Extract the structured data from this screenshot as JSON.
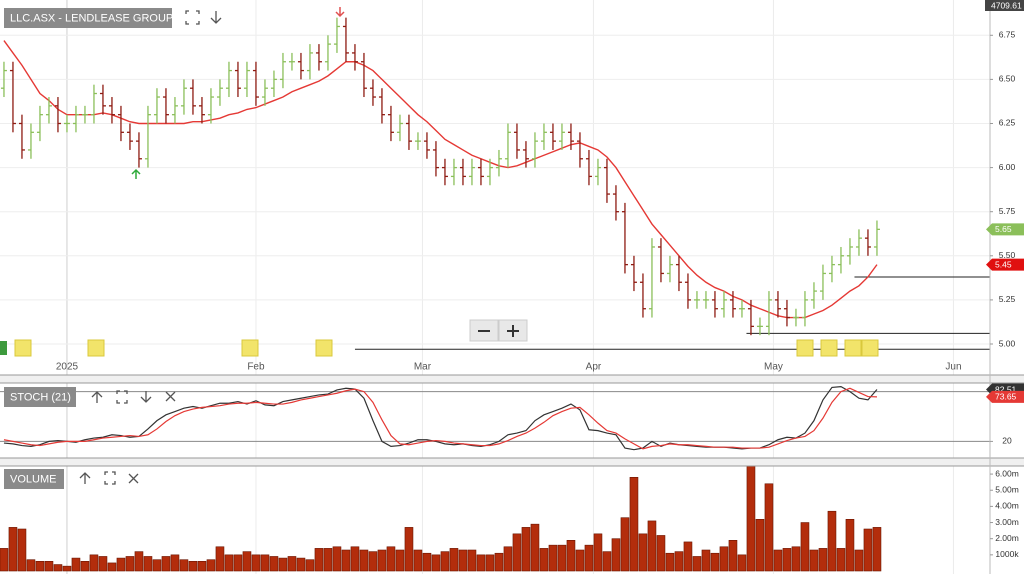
{
  "header_value": 4709.61,
  "chart_data": [
    {
      "type": "ohlc",
      "title": "LLC.ASX - LENDLEASE GROUP",
      "open": [
        6.45,
        6.55,
        6.25,
        6.1,
        6.2,
        6.3,
        6.35,
        6.25,
        6.25,
        6.3,
        6.3,
        6.42,
        6.35,
        6.3,
        6.2,
        6.15,
        6.05,
        6.3,
        6.4,
        6.3,
        6.35,
        6.45,
        6.35,
        6.3,
        6.4,
        6.45,
        6.55,
        6.45,
        6.55,
        6.4,
        6.45,
        6.5,
        6.6,
        6.6,
        6.55,
        6.65,
        6.6,
        6.7,
        6.8,
        6.65,
        6.6,
        6.45,
        6.4,
        6.3,
        6.2,
        6.25,
        6.15,
        6.15,
        6.1,
        6.0,
        5.95,
        6.0,
        5.95,
        6.0,
        5.95,
        6.0,
        6.05,
        6.2,
        6.1,
        6.05,
        6.15,
        6.2,
        6.15,
        6.2,
        6.15,
        6.05,
        5.95,
        6.0,
        5.85,
        5.75,
        5.45,
        5.35,
        5.2,
        5.55,
        5.4,
        5.45,
        5.35,
        5.25,
        5.25,
        5.25,
        5.2,
        5.25,
        5.2,
        5.2,
        5.1,
        5.1,
        5.25,
        5.2,
        5.15,
        5.15,
        5.25,
        5.3,
        5.4,
        5.45,
        5.5,
        5.55,
        5.6,
        5.55
      ],
      "high": [
        6.6,
        6.6,
        6.3,
        6.25,
        6.35,
        6.4,
        6.4,
        6.3,
        6.35,
        6.35,
        6.47,
        6.47,
        6.4,
        6.35,
        6.25,
        6.2,
        6.35,
        6.45,
        6.45,
        6.4,
        6.5,
        6.5,
        6.4,
        6.45,
        6.5,
        6.6,
        6.6,
        6.6,
        6.6,
        6.5,
        6.55,
        6.65,
        6.65,
        6.65,
        6.7,
        6.7,
        6.75,
        6.85,
        6.85,
        6.7,
        6.65,
        6.5,
        6.45,
        6.35,
        6.3,
        6.3,
        6.2,
        6.2,
        6.15,
        6.05,
        6.05,
        6.05,
        6.05,
        6.05,
        6.05,
        6.1,
        6.25,
        6.25,
        6.15,
        6.2,
        6.25,
        6.25,
        6.25,
        6.25,
        6.2,
        6.1,
        6.05,
        6.05,
        5.9,
        5.8,
        5.5,
        5.4,
        5.6,
        5.6,
        5.5,
        5.5,
        5.4,
        5.3,
        5.3,
        5.3,
        5.3,
        5.3,
        5.25,
        5.25,
        5.15,
        5.3,
        5.3,
        5.25,
        5.2,
        5.3,
        5.35,
        5.45,
        5.5,
        5.55,
        5.6,
        5.65,
        5.65,
        5.7
      ],
      "low": [
        6.4,
        6.2,
        6.05,
        6.05,
        6.15,
        6.25,
        6.2,
        6.2,
        6.2,
        6.25,
        6.25,
        6.3,
        6.25,
        6.15,
        6.1,
        6.0,
        6.0,
        6.25,
        6.25,
        6.25,
        6.3,
        6.3,
        6.25,
        6.25,
        6.35,
        6.4,
        6.4,
        6.4,
        6.35,
        6.35,
        6.4,
        6.45,
        6.55,
        6.5,
        6.5,
        6.55,
        6.55,
        6.65,
        6.6,
        6.55,
        6.4,
        6.35,
        6.25,
        6.15,
        6.15,
        6.1,
        6.1,
        6.05,
        5.95,
        5.9,
        5.9,
        5.9,
        5.9,
        5.9,
        5.9,
        5.95,
        6.0,
        6.05,
        6.0,
        6.0,
        6.1,
        6.1,
        6.1,
        6.1,
        6.0,
        5.9,
        5.9,
        5.8,
        5.7,
        5.4,
        5.3,
        5.15,
        5.15,
        5.35,
        5.35,
        5.3,
        5.2,
        5.2,
        5.2,
        5.15,
        5.15,
        5.15,
        5.15,
        5.05,
        5.05,
        5.05,
        5.15,
        5.1,
        5.1,
        5.1,
        5.2,
        5.25,
        5.35,
        5.4,
        5.45,
        5.5,
        5.5,
        5.5
      ],
      "close": [
        6.55,
        6.25,
        6.1,
        6.2,
        6.3,
        6.35,
        6.25,
        6.25,
        6.3,
        6.3,
        6.42,
        6.35,
        6.3,
        6.2,
        6.15,
        6.05,
        6.3,
        6.4,
        6.3,
        6.35,
        6.45,
        6.35,
        6.3,
        6.4,
        6.45,
        6.55,
        6.45,
        6.55,
        6.4,
        6.45,
        6.5,
        6.6,
        6.6,
        6.55,
        6.65,
        6.6,
        6.7,
        6.8,
        6.65,
        6.6,
        6.45,
        6.4,
        6.3,
        6.2,
        6.25,
        6.15,
        6.15,
        6.1,
        6.0,
        5.95,
        6.0,
        5.95,
        6.0,
        5.95,
        6.0,
        6.05,
        6.2,
        6.1,
        6.05,
        6.15,
        6.2,
        6.15,
        6.2,
        6.15,
        6.05,
        5.95,
        6.0,
        5.85,
        5.75,
        5.45,
        5.35,
        5.2,
        5.55,
        5.4,
        5.45,
        5.35,
        5.25,
        5.25,
        5.25,
        5.2,
        5.25,
        5.2,
        5.2,
        5.1,
        5.1,
        5.25,
        5.2,
        5.15,
        5.15,
        5.25,
        5.3,
        5.4,
        5.45,
        5.5,
        5.55,
        5.6,
        5.55,
        5.65
      ],
      "up_color": "#8bbf5a",
      "down_color": "#8e1b12",
      "close_badge_color": "#8bbf5a",
      "ma": {
        "color": "#e53935",
        "values": [
          6.72,
          6.65,
          6.58,
          6.5,
          6.42,
          6.38,
          6.33,
          6.3,
          6.3,
          6.3,
          6.3,
          6.31,
          6.3,
          6.28,
          6.26,
          6.25,
          6.25,
          6.25,
          6.25,
          6.25,
          6.25,
          6.26,
          6.26,
          6.27,
          6.28,
          6.3,
          6.31,
          6.33,
          6.34,
          6.36,
          6.38,
          6.4,
          6.43,
          6.45,
          6.47,
          6.49,
          6.52,
          6.56,
          6.6,
          6.6,
          6.58,
          6.55,
          6.5,
          6.45,
          6.4,
          6.35,
          6.3,
          6.26,
          6.21,
          6.16,
          6.13,
          6.1,
          6.07,
          6.05,
          6.03,
          6.01,
          6.0,
          6.01,
          6.03,
          6.05,
          6.07,
          6.09,
          6.11,
          6.13,
          6.14,
          6.12,
          6.1,
          6.06,
          6.0,
          5.92,
          5.84,
          5.76,
          5.68,
          5.62,
          5.56,
          5.5,
          5.44,
          5.39,
          5.35,
          5.32,
          5.3,
          5.27,
          5.25,
          5.22,
          5.2,
          5.18,
          5.16,
          5.15,
          5.15,
          5.15,
          5.17,
          5.19,
          5.22,
          5.26,
          5.3,
          5.33,
          5.38,
          5.45
        ]
      },
      "levels": [
        {
          "value": 5.38,
          "start": 94.5
        },
        {
          "value": 5.06,
          "start": 82.5
        },
        {
          "value": 4.97,
          "start": 39
        }
      ],
      "xlim": [
        -0.44,
        109.56
      ],
      "xticks": [
        {
          "value": 7,
          "label": "2025"
        },
        {
          "value": 28,
          "label": "Feb"
        },
        {
          "value": 46.5,
          "label": "Mar"
        },
        {
          "value": 65.5,
          "label": "Apr"
        },
        {
          "value": 85.5,
          "label": "May"
        },
        {
          "value": 105.5,
          "label": "Jun"
        }
      ],
      "ylim": [
        4.83,
        6.95
      ],
      "yticks": [
        {
          "value": 5,
          "label": "5.00"
        },
        5.25,
        {
          "value": 5.5,
          "label": "5.50"
        },
        5.75,
        {
          "value": 6,
          "label": "6.00"
        },
        6.25,
        {
          "value": 6.5,
          "label": "6.50"
        },
        6.75
      ],
      "grid": true
    },
    {
      "type": "line",
      "title": "STOCH (21)",
      "series": [
        {
          "color": "#333333",
          "values": [
            18,
            17,
            15,
            14,
            16,
            20,
            21,
            20,
            19,
            22,
            24,
            25,
            28,
            27,
            25,
            26,
            35,
            45,
            52,
            56,
            60,
            62,
            60,
            63,
            66,
            66,
            68,
            65,
            69,
            64,
            63,
            68,
            70,
            72,
            74,
            76,
            77,
            82,
            84,
            83,
            72,
            45,
            20,
            14,
            15,
            18,
            22,
            22,
            20,
            17,
            16,
            17,
            15,
            14,
            16,
            20,
            28,
            30,
            33,
            45,
            52,
            56,
            60,
            65,
            58,
            34,
            33,
            30,
            28,
            12,
            10,
            12,
            20,
            14,
            18,
            16,
            15,
            14,
            13,
            13,
            13,
            12,
            11,
            12,
            12,
            16,
            22,
            25,
            24,
            30,
            45,
            70,
            85,
            86,
            80,
            72,
            70,
            82.51
          ]
        },
        {
          "color": "#e53935",
          "values": [
            22,
            20,
            18,
            16,
            15,
            17,
            19,
            20,
            20,
            20,
            22,
            24,
            25,
            26,
            27,
            26,
            28,
            35,
            44,
            51,
            56,
            59,
            61,
            62,
            63,
            65,
            66,
            66,
            67,
            66,
            65,
            65,
            67,
            70,
            72,
            74,
            76,
            78,
            81,
            83,
            80,
            67,
            46,
            27,
            17,
            16,
            18,
            20,
            21,
            20,
            18,
            17,
            16,
            15,
            15,
            17,
            21,
            26,
            30,
            36,
            43,
            51,
            56,
            60,
            61,
            52,
            42,
            33,
            30,
            23,
            17,
            11,
            14,
            15,
            17,
            16,
            16,
            15,
            14,
            13,
            13,
            13,
            12,
            12,
            12,
            13,
            17,
            21,
            24,
            26,
            33,
            48,
            67,
            80,
            84,
            79,
            74,
            73.65
          ]
        }
      ],
      "ylim": [
        0,
        100
      ],
      "yticks": [
        20
      ],
      "levels": [
        {
          "value": 80
        }
      ],
      "grid": true
    },
    {
      "type": "bar",
      "title": "VOLUME",
      "color": "#b32d0c",
      "values": [
        1400000,
        2700000,
        2600000,
        700000,
        600000,
        600000,
        400000,
        300000,
        800000,
        600000,
        1000000,
        900000,
        500000,
        800000,
        900000,
        1200000,
        900000,
        700000,
        900000,
        1000000,
        700000,
        600000,
        600000,
        700000,
        1500000,
        1000000,
        1000000,
        1200000,
        1000000,
        1000000,
        900000,
        800000,
        900000,
        800000,
        700000,
        1400000,
        1400000,
        1500000,
        1300000,
        1500000,
        1300000,
        1200000,
        1300000,
        1500000,
        1300000,
        2700000,
        1300000,
        1100000,
        1000000,
        1200000,
        1400000,
        1300000,
        1300000,
        1000000,
        1000000,
        1100000,
        1500000,
        2300000,
        2700000,
        2900000,
        1400000,
        1600000,
        1600000,
        1900000,
        1300000,
        1600000,
        2300000,
        1200000,
        2000000,
        3300000,
        5800000,
        2300000,
        3100000,
        2200000,
        1100000,
        1200000,
        1800000,
        900000,
        1300000,
        1100000,
        1500000,
        1900000,
        1000000,
        6900000,
        3200000,
        5400000,
        1300000,
        1400000,
        1500000,
        3000000,
        1300000,
        1400000,
        3700000,
        1400000,
        3200000,
        1300000,
        2600000,
        2700000
      ],
      "ylim": [
        0,
        6500000
      ],
      "yticks": [
        {
          "value": 1000000,
          "label": "1000k"
        },
        {
          "value": 2000000,
          "label": "2.00m"
        },
        {
          "value": 3000000,
          "label": "3.00m"
        },
        {
          "value": 4000000,
          "label": "4.00m"
        },
        {
          "value": 5000000,
          "label": "5.00m"
        },
        {
          "value": 6000000,
          "label": "6.00m"
        }
      ],
      "grid": false
    }
  ]
}
